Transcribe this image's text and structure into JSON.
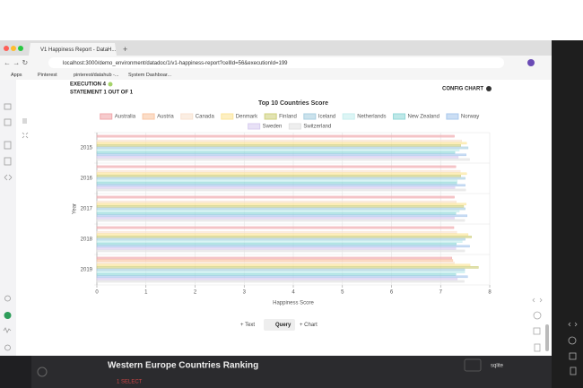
{
  "browser": {
    "tab_title": "V1 Happiness Report - DataH...",
    "url": "localhost:3000/demo_environment/datadoc/1/v1-happiness-report?cellId=56&executionId=199",
    "bookmarks": [
      "Apps",
      "Pinterest",
      "pinterest/datahub -...",
      "System Dashboar..."
    ]
  },
  "cell": {
    "execution": "EXECUTION 4",
    "statement": "STATEMENT 1 OUT OF 1",
    "config": "CONFIG CHART",
    "toolbar": [
      "+ Text",
      "Query",
      "+ Chart"
    ]
  },
  "next_cell": {
    "title": "Western Europe Countries Ranking",
    "engine": "sqlite",
    "code_line": "1 SELECT"
  },
  "chart_data": {
    "type": "hbar",
    "title": "Top 10 Countries Score",
    "x_label": "Happiness Score",
    "y_label": "Year",
    "categories": [
      "2015",
      "2016",
      "2017",
      "2018",
      "2019"
    ],
    "xlim": [
      0,
      8
    ],
    "xticks": [
      0,
      1,
      2,
      3,
      4,
      5,
      6,
      7,
      8
    ],
    "grid": true,
    "series": [
      {
        "name": "Australia",
        "color": "#f0a8ac",
        "values": [
          7.28,
          7.31,
          7.28,
          7.27,
          7.23
        ]
      },
      {
        "name": "Austria",
        "color": "#f9c6a4",
        "values": [
          null,
          null,
          null,
          null,
          7.25
        ]
      },
      {
        "name": "Canada",
        "color": "#f8e2d0",
        "values": [
          7.43,
          7.4,
          7.32,
          7.33,
          7.28
        ]
      },
      {
        "name": "Denmark",
        "color": "#fbe59a",
        "values": [
          7.53,
          7.53,
          7.52,
          7.56,
          7.6
        ]
      },
      {
        "name": "Finland",
        "color": "#cfd07e",
        "values": [
          7.41,
          7.41,
          7.47,
          7.63,
          7.77
        ]
      },
      {
        "name": "Iceland",
        "color": "#a9cfe0",
        "values": [
          7.56,
          7.5,
          7.5,
          7.5,
          7.49
        ]
      },
      {
        "name": "Netherlands",
        "color": "#c6eeee",
        "values": [
          7.38,
          7.34,
          7.38,
          7.44,
          7.49
        ]
      },
      {
        "name": "New Zealand",
        "color": "#93d8d8",
        "values": [
          7.29,
          7.33,
          7.31,
          7.32,
          7.31
        ]
      },
      {
        "name": "Norway",
        "color": "#a9c8ec",
        "values": [
          7.52,
          7.5,
          7.54,
          7.59,
          7.55
        ]
      },
      {
        "name": "Sweden",
        "color": "#d8cdf0",
        "values": [
          7.36,
          7.29,
          7.28,
          7.31,
          7.34
        ]
      },
      {
        "name": "Switzerland",
        "color": "#e2e2e2",
        "values": [
          7.59,
          7.51,
          7.49,
          7.49,
          7.48
        ]
      }
    ]
  }
}
